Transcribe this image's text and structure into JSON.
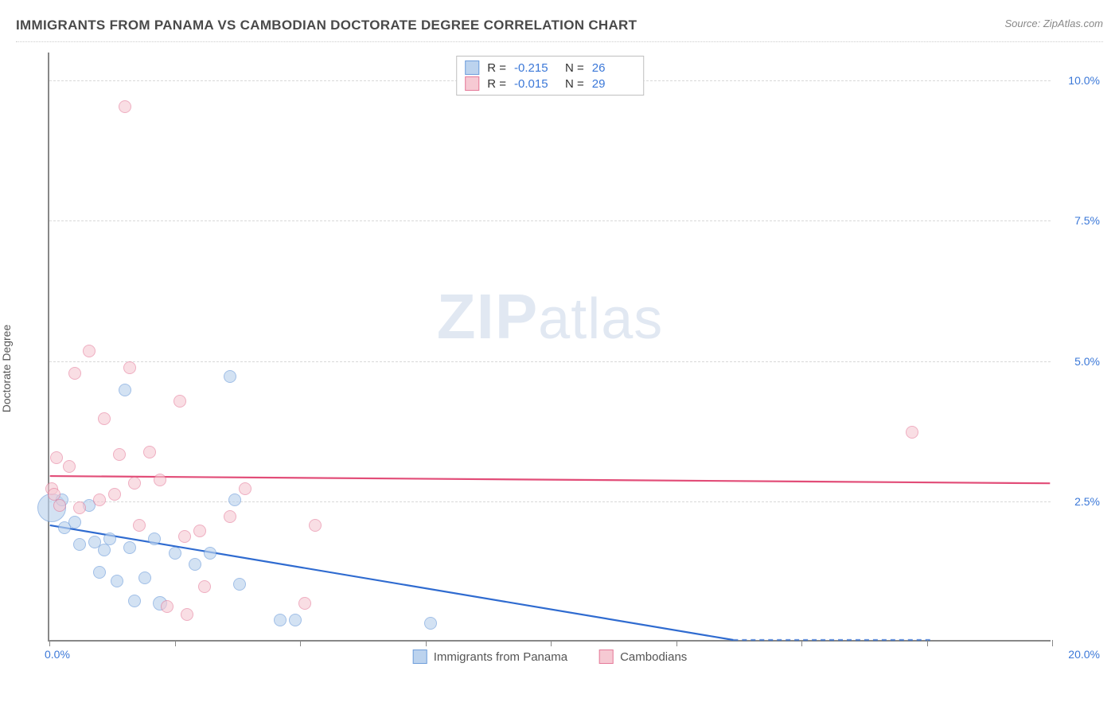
{
  "title": "IMMIGRANTS FROM PANAMA VS CAMBODIAN DOCTORATE DEGREE CORRELATION CHART",
  "source": "Source: ZipAtlas.com",
  "watermark": {
    "bold": "ZIP",
    "rest": "atlas"
  },
  "ylabel": "Doctorate Degree",
  "chart": {
    "type": "scatter",
    "xlim": [
      0,
      20
    ],
    "ylim": [
      0,
      10.5
    ],
    "xticks": [
      0,
      2.5,
      5,
      7.5,
      10,
      12.5,
      15,
      17.5,
      20
    ],
    "yticks": [
      2.5,
      5.0,
      7.5,
      10.0
    ],
    "ytick_labels": [
      "2.5%",
      "5.0%",
      "7.5%",
      "10.0%"
    ],
    "x_origin_label": "0.0%",
    "x_max_label": "20.0%",
    "grid_color": "#d8d8d8",
    "axis_color": "#888888",
    "tick_label_color": "#3b78d8",
    "background_color": "#ffffff"
  },
  "series": [
    {
      "key": "panama",
      "label": "Immigrants from Panama",
      "fill": "#bcd3ee",
      "stroke": "#6f9edb",
      "fill_opacity": 0.65,
      "marker_radius": 8,
      "R": "-0.215",
      "N": "26",
      "trend": {
        "y_at_x0": 2.05,
        "y_at_xmax": -0.95,
        "color": "#2f6bd0",
        "width": 2.2
      },
      "points": [
        [
          0.05,
          2.35,
          18
        ],
        [
          0.25,
          2.5,
          8
        ],
        [
          0.3,
          2.0,
          8
        ],
        [
          0.5,
          2.1,
          8
        ],
        [
          0.6,
          1.7,
          8
        ],
        [
          0.8,
          2.4,
          8
        ],
        [
          0.9,
          1.75,
          8
        ],
        [
          1.0,
          1.2,
          8
        ],
        [
          1.1,
          1.6,
          8
        ],
        [
          1.2,
          1.8,
          8
        ],
        [
          1.35,
          1.05,
          8
        ],
        [
          1.5,
          4.45,
          8
        ],
        [
          1.6,
          1.65,
          8
        ],
        [
          1.7,
          0.7,
          8
        ],
        [
          1.9,
          1.1,
          8
        ],
        [
          2.1,
          1.8,
          8
        ],
        [
          2.2,
          0.65,
          9
        ],
        [
          2.5,
          1.55,
          8
        ],
        [
          2.9,
          1.35,
          8
        ],
        [
          3.2,
          1.55,
          8
        ],
        [
          3.6,
          4.7,
          8
        ],
        [
          3.7,
          2.5,
          8
        ],
        [
          3.8,
          1.0,
          8
        ],
        [
          4.6,
          0.35,
          8
        ],
        [
          4.9,
          0.35,
          8
        ],
        [
          7.6,
          0.3,
          8
        ]
      ]
    },
    {
      "key": "cambodians",
      "label": "Cambodians",
      "fill": "#f6c9d3",
      "stroke": "#e57a99",
      "fill_opacity": 0.6,
      "marker_radius": 8,
      "R": "-0.015",
      "N": "29",
      "trend": {
        "y_at_x0": 2.93,
        "y_at_xmax": 2.8,
        "color": "#e24d78",
        "width": 2.2
      },
      "points": [
        [
          0.05,
          2.7,
          8
        ],
        [
          0.1,
          2.6,
          8
        ],
        [
          0.15,
          3.25,
          8
        ],
        [
          0.2,
          2.4,
          8
        ],
        [
          0.4,
          3.1,
          8
        ],
        [
          0.5,
          4.75,
          8
        ],
        [
          0.6,
          2.35,
          8
        ],
        [
          0.8,
          5.15,
          8
        ],
        [
          1.0,
          2.5,
          8
        ],
        [
          1.1,
          3.95,
          8
        ],
        [
          1.3,
          2.6,
          8
        ],
        [
          1.4,
          3.3,
          8
        ],
        [
          1.5,
          9.5,
          8
        ],
        [
          1.6,
          4.85,
          8
        ],
        [
          1.7,
          2.8,
          8
        ],
        [
          1.8,
          2.05,
          8
        ],
        [
          2.0,
          3.35,
          8
        ],
        [
          2.2,
          2.85,
          8
        ],
        [
          2.35,
          0.6,
          8
        ],
        [
          2.6,
          4.25,
          8
        ],
        [
          2.7,
          1.85,
          8
        ],
        [
          2.75,
          0.45,
          8
        ],
        [
          3.0,
          1.95,
          8
        ],
        [
          3.1,
          0.95,
          8
        ],
        [
          3.6,
          2.2,
          8
        ],
        [
          3.9,
          2.7,
          8
        ],
        [
          5.1,
          0.65,
          8
        ],
        [
          5.3,
          2.05,
          8
        ],
        [
          17.2,
          3.7,
          8
        ]
      ]
    }
  ],
  "legend_top": {
    "r_label": "R =",
    "n_label": "N ="
  }
}
